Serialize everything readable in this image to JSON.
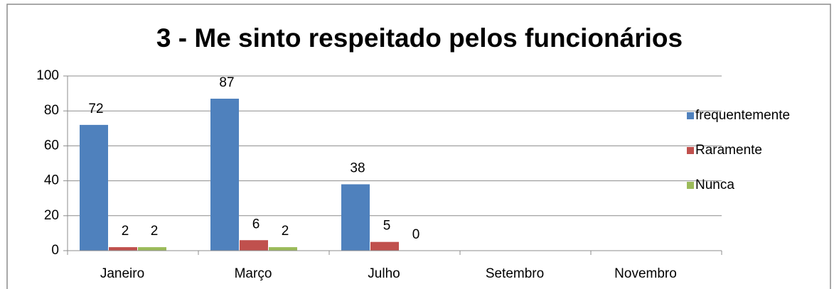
{
  "chart_data": {
    "type": "bar",
    "title": "3 - Me sinto respeitado pelos funcionários",
    "categories": [
      "Janeiro",
      "Março",
      "Julho",
      "Setembro",
      "Novembro"
    ],
    "series": [
      {
        "name": "frequentemente",
        "color": "#4f81bd",
        "values": [
          72,
          87,
          38,
          null,
          null
        ]
      },
      {
        "name": "Raramente",
        "color": "#c0504d",
        "values": [
          2,
          6,
          5,
          null,
          null
        ]
      },
      {
        "name": "Nunca",
        "color": "#9bbb59",
        "values": [
          2,
          2,
          0,
          null,
          null
        ]
      }
    ],
    "ylim": [
      0,
      100
    ],
    "yticks": [
      0,
      20,
      40,
      60,
      80,
      100
    ],
    "grid": true,
    "legend": "right"
  }
}
